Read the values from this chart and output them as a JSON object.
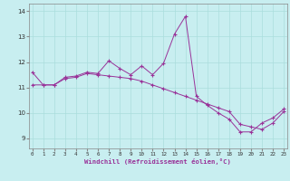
{
  "xlabel": "Windchill (Refroidissement éolien,°C)",
  "x_ticks": [
    0,
    1,
    2,
    3,
    4,
    5,
    6,
    7,
    8,
    9,
    10,
    11,
    12,
    13,
    14,
    15,
    16,
    17,
    18,
    19,
    20,
    21,
    22,
    23
  ],
  "y_ticks": [
    9,
    10,
    11,
    12,
    13,
    14
  ],
  "xlim": [
    -0.3,
    23.3
  ],
  "ylim": [
    8.6,
    14.3
  ],
  "line_color": "#993399",
  "bg_color": "#c8eef0",
  "grid_color": "#aadddd",
  "line1_x": [
    0,
    1,
    2,
    3,
    4,
    5,
    6,
    7,
    8,
    9,
    10,
    11,
    12,
    13,
    14,
    15,
    16,
    17,
    18,
    19,
    20,
    21,
    22,
    23
  ],
  "line1_y": [
    11.6,
    11.1,
    11.1,
    11.4,
    11.45,
    11.6,
    11.55,
    12.05,
    11.75,
    11.5,
    11.85,
    11.5,
    11.95,
    13.1,
    13.8,
    10.65,
    10.3,
    10.0,
    9.75,
    9.25,
    9.25,
    9.6,
    9.8,
    10.15
  ],
  "line2_x": [
    0,
    1,
    2,
    3,
    4,
    5,
    6,
    7,
    8,
    9,
    10,
    11,
    12,
    13,
    14,
    15,
    16,
    17,
    18,
    19,
    20,
    21,
    22,
    23
  ],
  "line2_y": [
    11.1,
    11.1,
    11.1,
    11.35,
    11.4,
    11.55,
    11.5,
    11.45,
    11.4,
    11.35,
    11.25,
    11.1,
    10.95,
    10.8,
    10.65,
    10.5,
    10.35,
    10.2,
    10.05,
    9.55,
    9.45,
    9.35,
    9.6,
    10.05
  ]
}
